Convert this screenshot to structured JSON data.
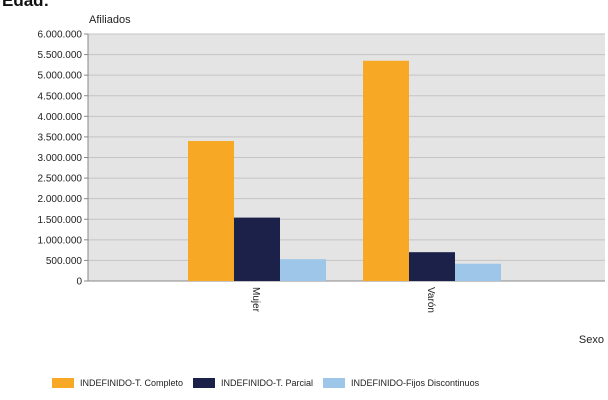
{
  "page": {
    "title": "Edad:"
  },
  "chart_data": {
    "type": "bar",
    "categories": [
      "Mujer",
      "Varón"
    ],
    "series": [
      {
        "name": "INDEFINIDO-T. Completo",
        "color": "#f7a824",
        "values": [
          3400000,
          5350000
        ]
      },
      {
        "name": "INDEFINIDO-T. Parcial",
        "color": "#1b2148",
        "values": [
          1540000,
          700000
        ]
      },
      {
        "name": "INDEFINIDO-Fijos Discontinuos",
        "color": "#9dc6e9",
        "values": [
          530000,
          420000
        ]
      }
    ],
    "ylim": [
      0,
      6000000
    ],
    "yticks": [
      0,
      500000,
      1000000,
      1500000,
      2000000,
      2500000,
      3000000,
      3500000,
      4000000,
      4500000,
      5000000,
      5500000,
      6000000
    ],
    "ytick_labels": [
      "0",
      "500.000",
      "1.000.000",
      "1.500.000",
      "2.000.000",
      "2.500.000",
      "3.000.000",
      "3.500.000",
      "4.000.000",
      "4.500.000",
      "5.000.000",
      "5.500.000",
      "6.000.000"
    ],
    "ylabel": "Afiliados",
    "xlabel": "Sexo",
    "grid": true,
    "legend_position": "bottom",
    "plot_background": "#e4e4e4"
  }
}
